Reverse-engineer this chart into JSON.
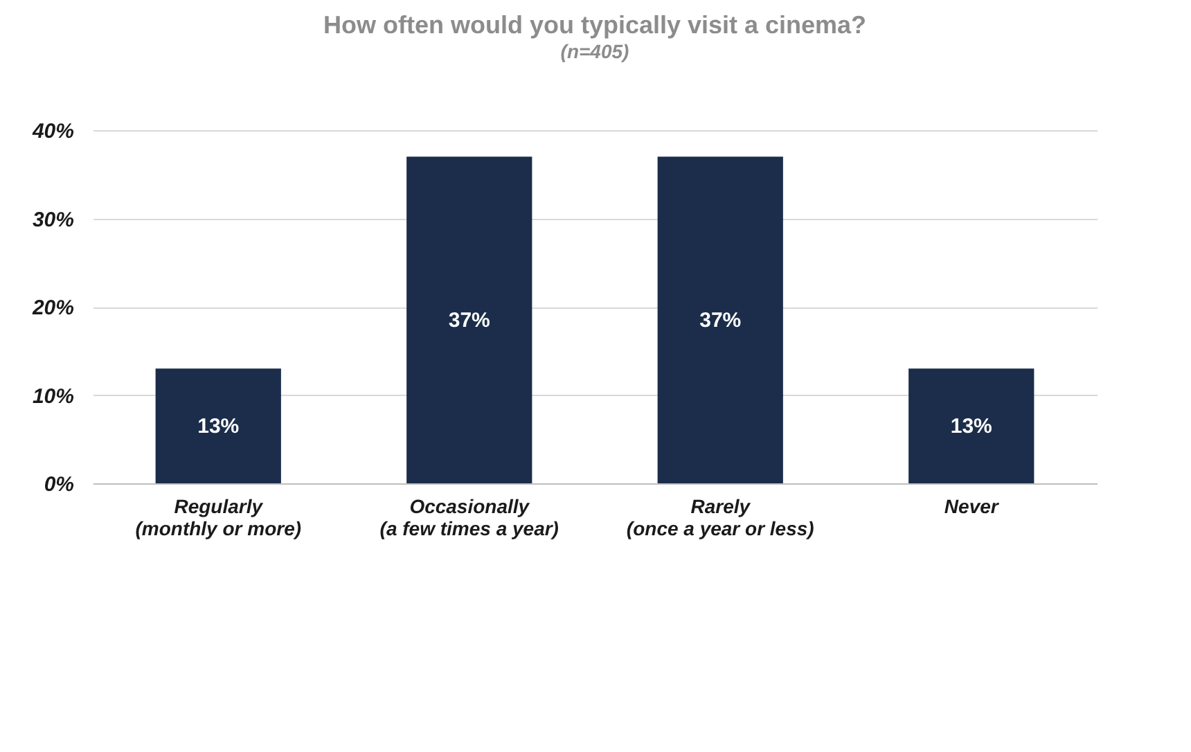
{
  "chart_data": {
    "type": "bar",
    "title": "How often would you typically visit a cinema?",
    "subtitle": "(n=405)",
    "categories": [
      "Regularly\n(monthly or more)",
      "Occasionally\n(a few times a year)",
      "Rarely\n(once a year or less)",
      "Never"
    ],
    "values": [
      13,
      37,
      37,
      13
    ],
    "color": "#1b2d4a",
    "ylim": [
      0,
      40
    ],
    "yticks": [
      {
        "value": 0,
        "label": "0%"
      },
      {
        "value": 10,
        "label": "10%"
      },
      {
        "value": 20,
        "label": "20%"
      },
      {
        "value": 30,
        "label": "30%"
      },
      {
        "value": 40,
        "label": "40%"
      }
    ],
    "grid": "y",
    "value_labels": [
      "13%",
      "37%",
      "37%",
      "13%"
    ]
  }
}
